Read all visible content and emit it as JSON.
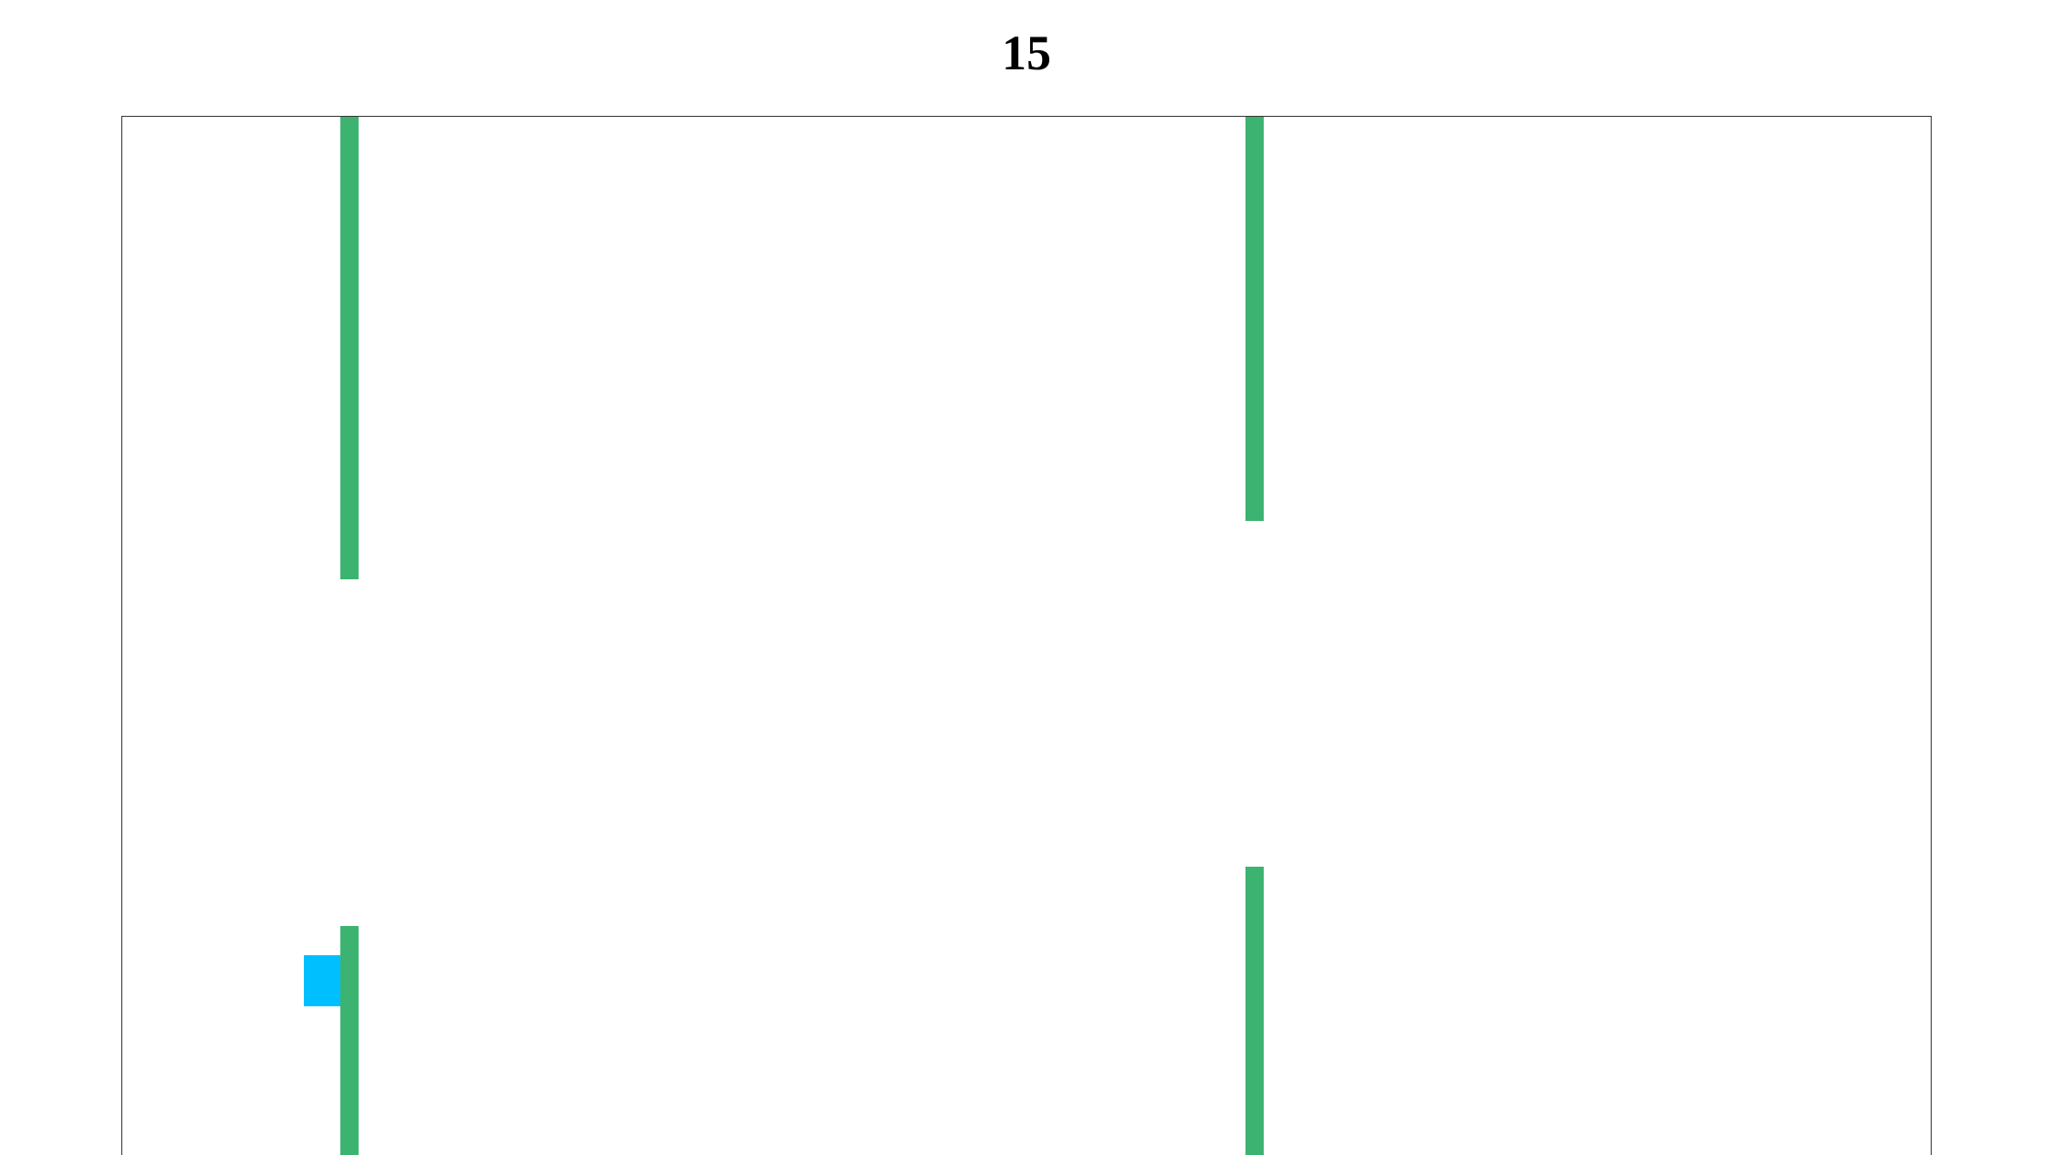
{
  "game": {
    "score": "15",
    "colors": {
      "pipe": "#3cb371",
      "player": "#00bfff",
      "background": "#ffffff",
      "border": "#333333"
    }
  }
}
